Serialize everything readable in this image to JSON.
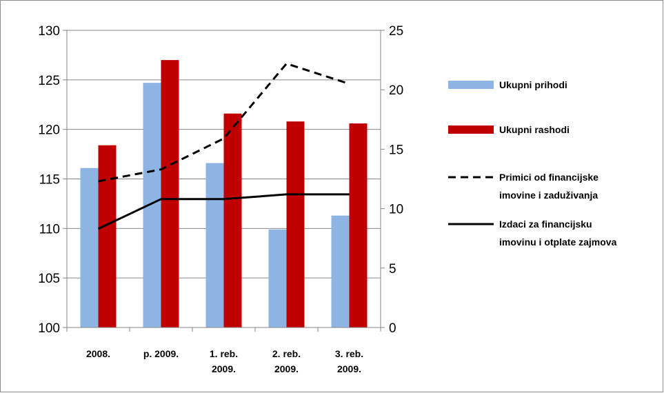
{
  "chart_data": {
    "type": "bar",
    "categories": [
      [
        "2008."
      ],
      [
        "p. 2009."
      ],
      [
        "1. reb.",
        "2009."
      ],
      [
        "2. reb.",
        "2009."
      ],
      [
        "3. reb.",
        "2009."
      ]
    ],
    "y_left": {
      "min": 100,
      "max": 130,
      "step": 5
    },
    "y_right": {
      "min": 0,
      "max": 25,
      "step": 5
    },
    "grid": true,
    "legend_position": "right",
    "series": [
      {
        "name": "Ukupni prihodi",
        "type": "bar",
        "axis": "left",
        "color": "#8EB4E3",
        "values": [
          116.1,
          124.7,
          116.6,
          109.9,
          111.3
        ]
      },
      {
        "name": "Ukupni rashodi",
        "type": "bar",
        "axis": "left",
        "color": "#C00000",
        "values": [
          118.4,
          127.0,
          121.6,
          120.8,
          120.6
        ]
      },
      {
        "name": "Primici od financijske imovine i zaduživanja",
        "legend_lines": [
          "Primici od financijske",
          "imovine i zaduživanja"
        ],
        "type": "line",
        "style": "dashed",
        "axis": "right",
        "color": "#000000",
        "values": [
          12.3,
          13.3,
          15.9,
          22.2,
          20.5
        ]
      },
      {
        "name": "Izdaci za financijsku imovinu i otplate zajmova",
        "legend_lines": [
          "Izdaci za financijsku",
          "imovinu i otplate zajmova"
        ],
        "type": "line",
        "style": "solid",
        "axis": "right",
        "color": "#000000",
        "values": [
          8.3,
          10.8,
          10.8,
          11.2,
          11.2
        ]
      }
    ]
  }
}
